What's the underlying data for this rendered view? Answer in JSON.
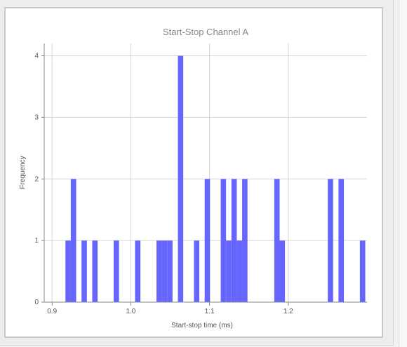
{
  "chart_data": {
    "type": "histogram",
    "title": "Start-Stop Channel A",
    "xlabel": "Start-stop time (ms)",
    "ylabel": "Frequency",
    "xlim": [
      0.89,
      1.3
    ],
    "ylim": [
      0,
      4.2
    ],
    "xticks": [
      {
        "value": 0.9,
        "label": "0.9"
      },
      {
        "value": 1.0,
        "label": "1.0"
      },
      {
        "value": 1.1,
        "label": "1.1"
      },
      {
        "value": 1.2,
        "label": "1.2"
      }
    ],
    "yticks": [
      {
        "value": 0,
        "label": "0"
      },
      {
        "value": 1,
        "label": "1"
      },
      {
        "value": 2,
        "label": "2"
      },
      {
        "value": 3,
        "label": "3"
      },
      {
        "value": 4,
        "label": "4"
      }
    ],
    "grid": true,
    "bar_color": "#6666ff",
    "bins": [
      {
        "start": 0.917,
        "end": 0.9238,
        "count": 1
      },
      {
        "start": 0.9238,
        "end": 0.9306,
        "count": 2
      },
      {
        "start": 0.9374,
        "end": 0.9442,
        "count": 1
      },
      {
        "start": 0.951,
        "end": 0.9578,
        "count": 1
      },
      {
        "start": 0.9782,
        "end": 0.985,
        "count": 1
      },
      {
        "start": 1.0054,
        "end": 1.0122,
        "count": 1
      },
      {
        "start": 1.0326,
        "end": 1.0394,
        "count": 1
      },
      {
        "start": 1.0394,
        "end": 1.0462,
        "count": 1
      },
      {
        "start": 1.0462,
        "end": 1.053,
        "count": 1
      },
      {
        "start": 1.0598,
        "end": 1.0666,
        "count": 4
      },
      {
        "start": 1.0802,
        "end": 1.087,
        "count": 1
      },
      {
        "start": 1.0938,
        "end": 1.1006,
        "count": 2
      },
      {
        "start": 1.1142,
        "end": 1.121,
        "count": 2
      },
      {
        "start": 1.121,
        "end": 1.1278,
        "count": 1
      },
      {
        "start": 1.1278,
        "end": 1.1346,
        "count": 2
      },
      {
        "start": 1.1346,
        "end": 1.1414,
        "count": 1
      },
      {
        "start": 1.1414,
        "end": 1.1482,
        "count": 2
      },
      {
        "start": 1.1822,
        "end": 1.189,
        "count": 2
      },
      {
        "start": 1.189,
        "end": 1.1958,
        "count": 1
      },
      {
        "start": 1.2502,
        "end": 1.257,
        "count": 2
      },
      {
        "start": 1.2638,
        "end": 1.2706,
        "count": 2
      },
      {
        "start": 1.291,
        "end": 1.2978,
        "count": 1
      }
    ]
  }
}
